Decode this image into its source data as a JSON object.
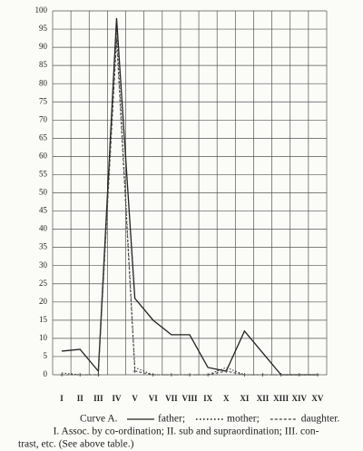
{
  "chart_data": {
    "type": "line",
    "categories": [
      "I",
      "II",
      "III",
      "IV",
      "V",
      "VI",
      "VII",
      "VIII",
      "IX",
      "X",
      "XI",
      "XII",
      "XIII",
      "XIV",
      "XV"
    ],
    "series": [
      {
        "name": "father;",
        "color": "#222222",
        "style": "solid",
        "values": [
          6.5,
          7,
          1,
          98,
          21,
          15,
          11,
          11,
          2,
          1,
          12,
          6,
          0,
          0,
          0
        ]
      },
      {
        "name": "mother;",
        "color": "#333333",
        "style": "dotted",
        "values": [
          0.5,
          0,
          0,
          95,
          2,
          0,
          0,
          0,
          0,
          2,
          0,
          0,
          0,
          0,
          0
        ]
      },
      {
        "name": "daughter.",
        "color": "#444444",
        "style": "plus",
        "values": [
          0,
          0,
          0,
          92,
          1,
          0,
          0,
          0,
          0,
          1,
          0,
          0,
          0,
          0,
          0
        ]
      }
    ],
    "ylim": [
      0,
      100
    ],
    "yticks": [
      0,
      5,
      10,
      15,
      20,
      25,
      30,
      35,
      40,
      45,
      50,
      55,
      60,
      65,
      70,
      75,
      80,
      85,
      90,
      95,
      100
    ],
    "grid": true,
    "legend_prefix": "Curve A.",
    "caption": [
      "I. Assoc. by co-ordination;  II. sub and supraordination;  III. con-",
      "trast, etc.  (See above table.)"
    ]
  }
}
